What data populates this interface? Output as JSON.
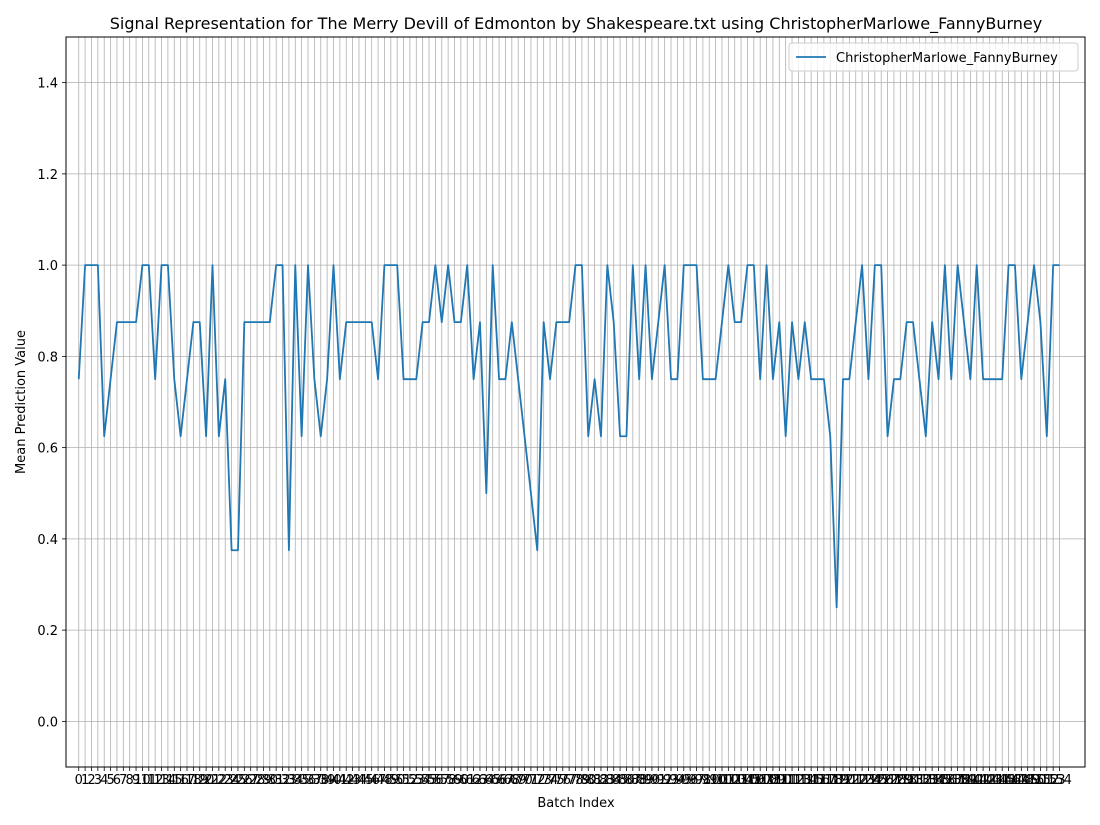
{
  "chart_data": {
    "type": "line",
    "title": "Signal Representation for The Merry Devill of Edmonton by Shakespeare.txt using ChristopherMarlowe_FannyBurney",
    "xlabel": "Batch Index",
    "ylabel": "Mean Prediction Value",
    "xlim": [
      -2,
      158
    ],
    "ylim": [
      -0.1,
      1.5
    ],
    "yticks": [
      0.0,
      0.2,
      0.4,
      0.6,
      0.8,
      1.0,
      1.2,
      1.4
    ],
    "grid": true,
    "legend_position": "top-right",
    "series": [
      {
        "name": "ChristopherMarlowe_FannyBurney",
        "color": "#1f77b4",
        "values": [
          0.75,
          1.0,
          1.0,
          1.0,
          0.625,
          0.75,
          0.875,
          0.875,
          0.875,
          0.875,
          1.0,
          1.0,
          0.75,
          1.0,
          1.0,
          0.75,
          0.625,
          0.75,
          0.875,
          0.875,
          0.625,
          1.0,
          0.625,
          0.75,
          0.375,
          0.375,
          0.875,
          0.875,
          0.875,
          0.875,
          0.875,
          1.0,
          1.0,
          0.375,
          1.0,
          0.625,
          1.0,
          0.75,
          0.625,
          0.75,
          1.0,
          0.75,
          0.875,
          0.875,
          0.875,
          0.875,
          0.875,
          0.75,
          1.0,
          1.0,
          1.0,
          0.75,
          0.75,
          0.75,
          0.875,
          0.875,
          1.0,
          0.875,
          1.0,
          0.875,
          0.875,
          1.0,
          0.75,
          0.875,
          0.5,
          1.0,
          0.75,
          0.75,
          0.875,
          0.75,
          0.625,
          0.5,
          0.375,
          0.875,
          0.75,
          0.875,
          0.875,
          0.875,
          1.0,
          1.0,
          0.625,
          0.75,
          0.625,
          1.0,
          0.875,
          0.625,
          0.625,
          1.0,
          0.75,
          1.0,
          0.75,
          0.875,
          1.0,
          0.75,
          0.75,
          1.0,
          1.0,
          1.0,
          0.75,
          0.75,
          0.75,
          0.875,
          1.0,
          0.875,
          0.875,
          1.0,
          1.0,
          0.75,
          1.0,
          0.75,
          0.875,
          0.625,
          0.875,
          0.75,
          0.875,
          0.75,
          0.75,
          0.75,
          0.625,
          0.25,
          0.75,
          0.75,
          0.875,
          1.0,
          0.75,
          1.0,
          1.0,
          0.625,
          0.75,
          0.75,
          0.875,
          0.875,
          0.75,
          0.625,
          0.875,
          0.75,
          1.0,
          0.75,
          1.0,
          0.875,
          0.75,
          1.0,
          0.75,
          0.75,
          0.75,
          0.75,
          1.0,
          1.0,
          0.75,
          0.875,
          1.0,
          0.875,
          0.625,
          1.0,
          1.0
        ]
      }
    ]
  }
}
